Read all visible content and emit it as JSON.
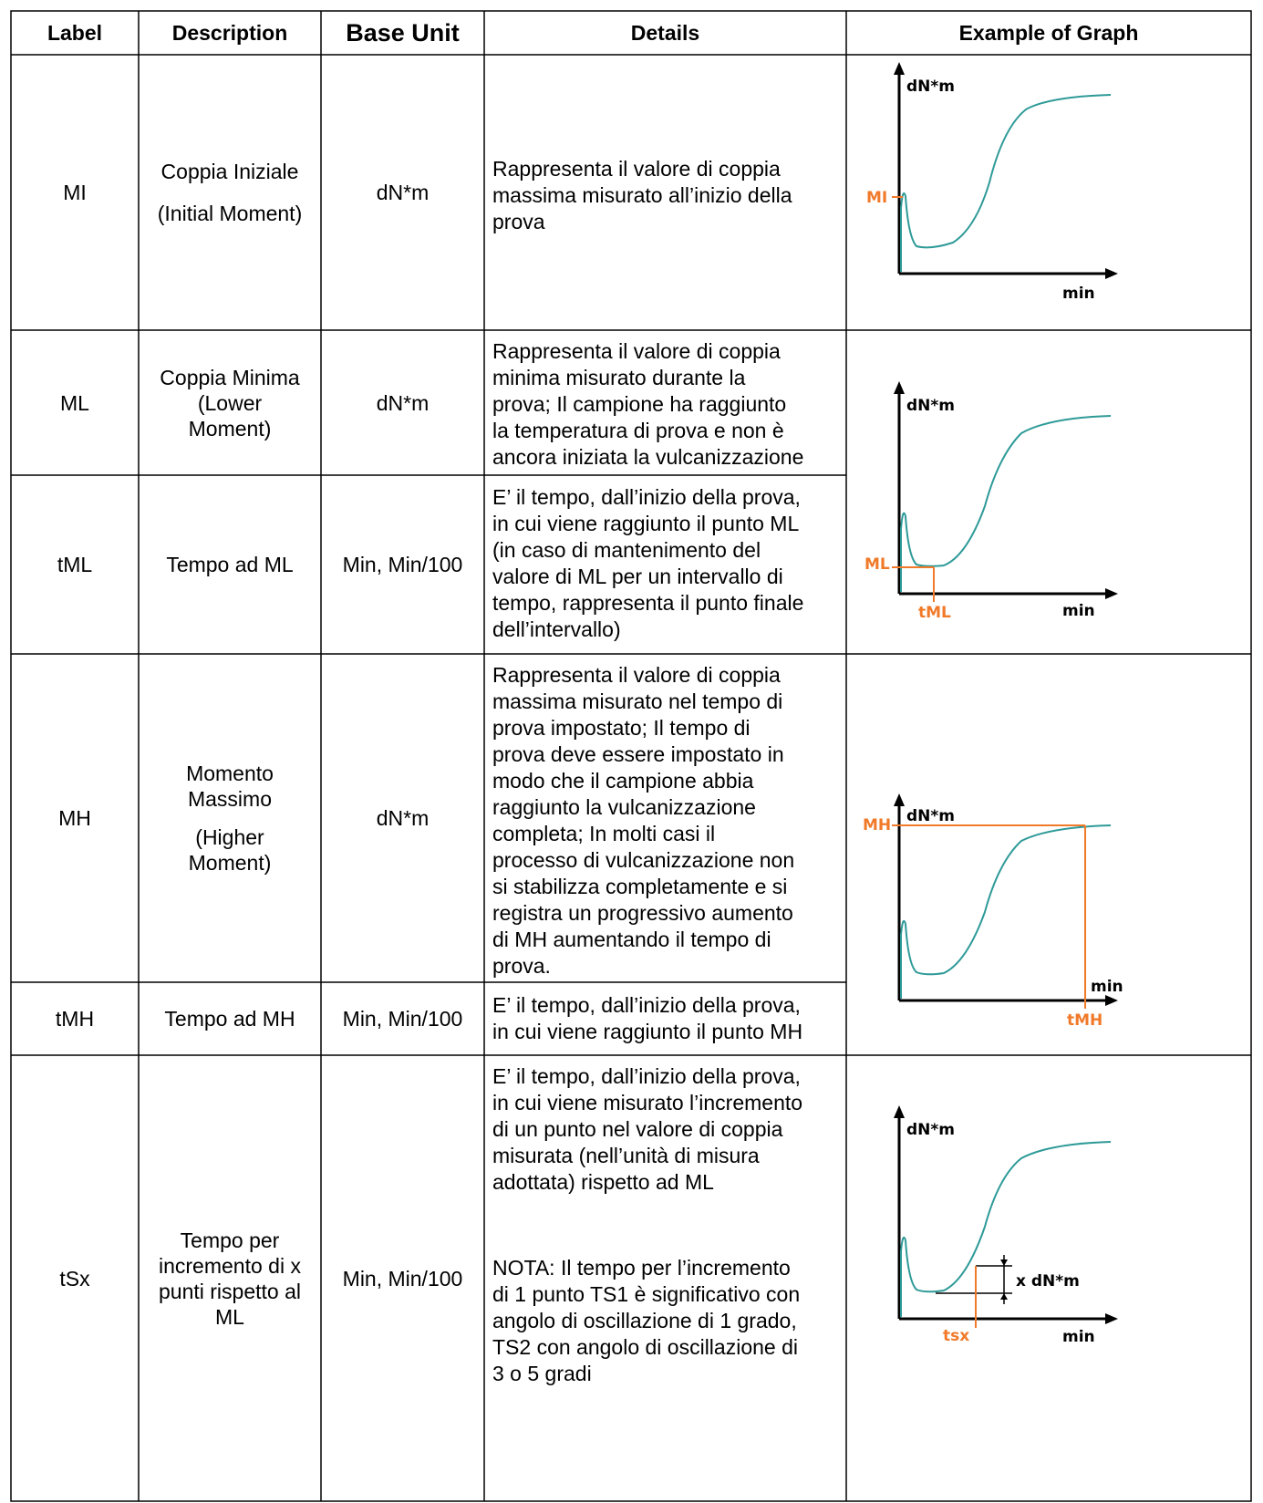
{
  "headers": {
    "label": "Label",
    "description": "Description",
    "base_unit": "Base Unit",
    "details": "Details",
    "example": "Example of Graph"
  },
  "rows": [
    {
      "label": "MI",
      "description": [
        "Coppia Iniziale",
        "(Initial Moment)"
      ],
      "unit": "dN*m",
      "details": [
        "Rappresenta il valore di coppia",
        "massima misurato all’inizio della",
        "prova"
      ]
    },
    {
      "label": "ML",
      "description": [
        "Coppia Minima",
        "(Lower",
        "Moment)"
      ],
      "unit": "dN*m",
      "details": [
        "Rappresenta il valore di coppia",
        "minima misurato durante la",
        "prova; Il campione ha raggiunto",
        "la temperatura di prova e non è",
        "ancora iniziata la vulcanizzazione"
      ]
    },
    {
      "label": "tML",
      "description": [
        "Tempo ad ML"
      ],
      "unit": "Min, Min/100",
      "details": [
        "E’ il tempo, dall’inizio della prova,",
        "in cui viene raggiunto il punto ML",
        "(in caso di mantenimento del",
        "valore di ML per un intervallo di",
        "tempo, rappresenta il punto finale",
        "dell’intervallo)"
      ]
    },
    {
      "label": "MH",
      "description": [
        "Momento",
        "Massimo",
        "(Higher",
        "Moment)"
      ],
      "unit": "dN*m",
      "details": [
        "Rappresenta il valore di coppia",
        "massima misurato nel tempo di",
        "prova impostato; Il tempo di",
        "prova deve essere impostato in",
        "modo che il campione abbia",
        "raggiunto la vulcanizzazione",
        "completa; In molti casi il",
        "processo di vulcanizzazione non",
        "si stabilizza completamente e si",
        "registra un progressivo aumento",
        "di MH aumentando il tempo di",
        "prova."
      ]
    },
    {
      "label": "tMH",
      "description": [
        "Tempo ad MH"
      ],
      "unit": "Min, Min/100",
      "details": [
        "E’ il tempo, dall’inizio della prova,",
        "in cui viene raggiunto il punto MH"
      ]
    },
    {
      "label": "tSx",
      "description": [
        "Tempo per",
        "incremento di x",
        "punti rispetto al",
        "ML"
      ],
      "unit": "Min, Min/100",
      "details": [
        "E’ il tempo, dall’inizio della prova,",
        "in cui viene misurato l’incremento",
        "di un punto nel valore di coppia",
        "misurata (nell’unità di misura",
        "adottata) rispetto ad ML"
      ],
      "note": [
        "NOTA: Il tempo per l’incremento",
        "di 1 punto TS1 è significativo con",
        "angolo di oscillazione di 1 grado,",
        "TS2 con angolo di oscillazione di",
        "3 o 5 gradi"
      ]
    }
  ],
  "graphs": [
    {
      "y_axis": "dN*m",
      "x_axis": "min",
      "marker_y": "MI"
    },
    {
      "y_axis": "dN*m",
      "x_axis": "min",
      "marker_y": "ML",
      "marker_x": "tML"
    },
    {
      "y_axis": "dN*m",
      "x_axis": "min",
      "marker_y": "MH",
      "marker_x": "tMH"
    },
    {
      "y_axis": "dN*m",
      "x_axis": "min",
      "marker_x": "tsx",
      "delta": "x dN*m"
    }
  ],
  "colors": {
    "curve": "#2e9a98",
    "marker": "#f07a2a",
    "grid": "#000000"
  }
}
